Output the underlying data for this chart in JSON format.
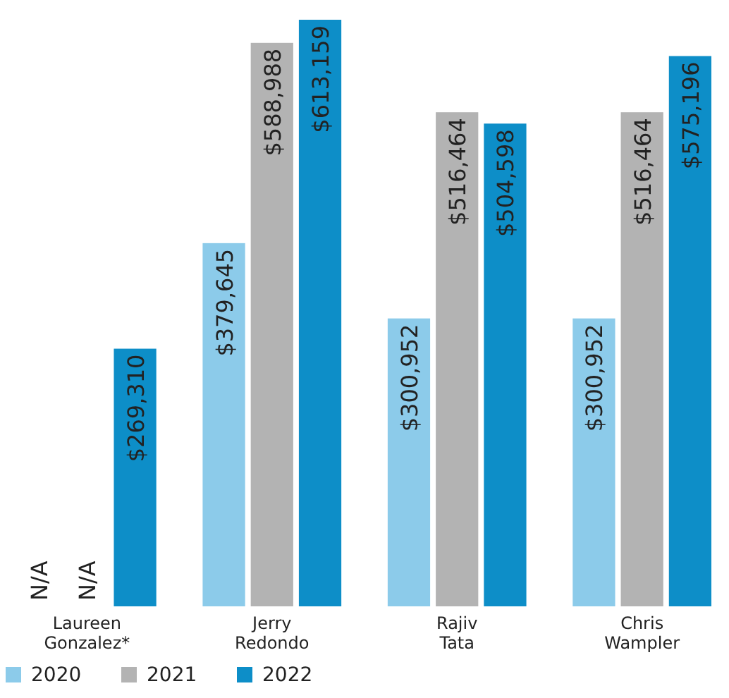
{
  "chart_data": {
    "type": "bar",
    "categories": [
      "Laureen Gonzalez*",
      "Jerry Redondo",
      "Rajiv Tata",
      "Chris Wampler"
    ],
    "series": [
      {
        "name": "2020",
        "color": "#8ccbea",
        "values": [
          null,
          379645,
          300952,
          300952
        ],
        "value_labels": [
          "N/A",
          "$379,645",
          "$300,952",
          "$300,952"
        ]
      },
      {
        "name": "2021",
        "color": "#b3b3b3",
        "values": [
          null,
          588988,
          516464,
          516464
        ],
        "value_labels": [
          "N/A",
          "$588,988",
          "$516,464",
          "$516,464"
        ]
      },
      {
        "name": "2022",
        "color": "#0d8ec8",
        "values": [
          269310,
          613159,
          504598,
          575196
        ],
        "value_labels": [
          "$269,310",
          "$613,159",
          "$504,598",
          "$575,196"
        ]
      }
    ],
    "legend": "bottom left"
  }
}
